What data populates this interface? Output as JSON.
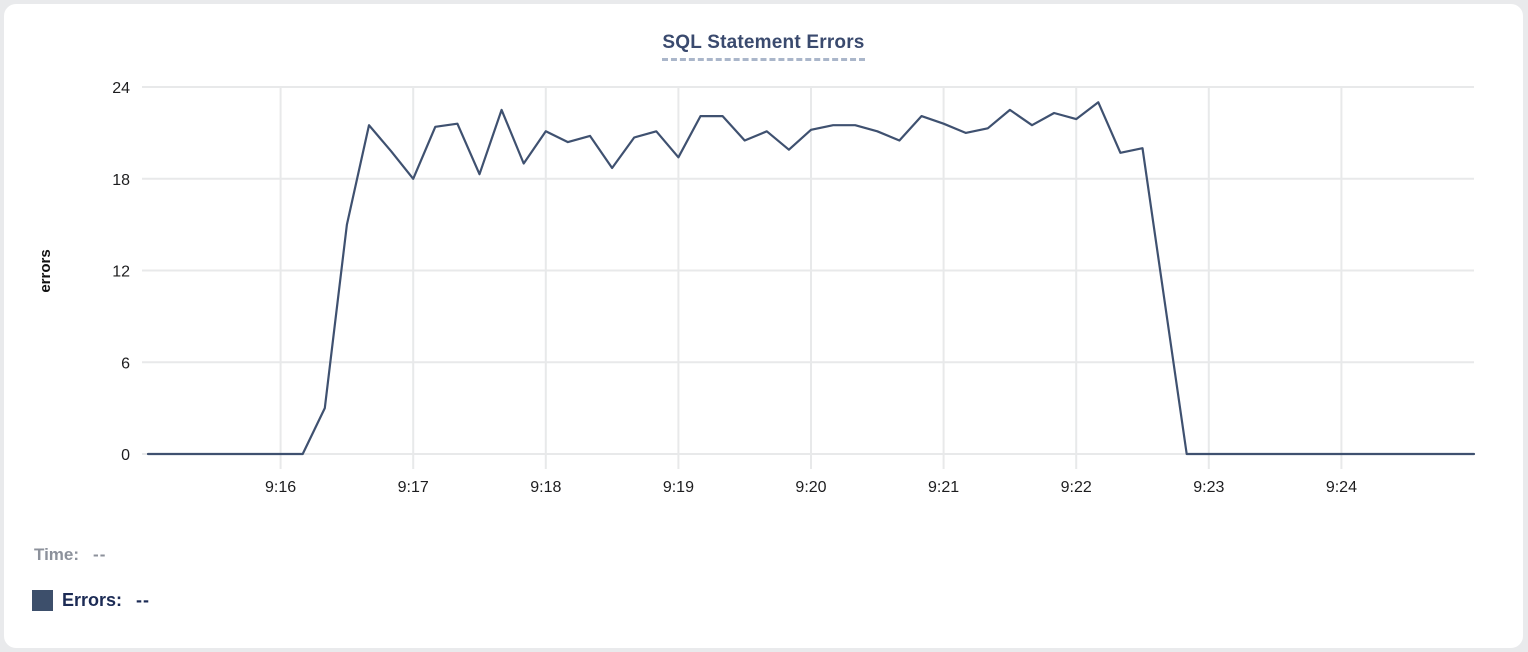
{
  "chart_data": {
    "type": "line",
    "title": "SQL Statement Errors",
    "xlabel": "",
    "ylabel": "errors",
    "ylim": [
      0,
      24
    ],
    "y_ticks": [
      0,
      6,
      12,
      18,
      24
    ],
    "x_tick_labels": [
      "9:16",
      "9:17",
      "9:18",
      "9:19",
      "9:20",
      "9:21",
      "9:22",
      "9:23",
      "9:24"
    ],
    "x_range_seconds": 600,
    "x_start": "9:15:00",
    "x_end": "9:25:00",
    "grid": true,
    "legend_position": "below-left",
    "grid_color": "#e8e9ea",
    "line_color": "#3f5170",
    "series": [
      {
        "name": "Errors",
        "times": [
          "9:15:00",
          "9:15:10",
          "9:15:20",
          "9:15:30",
          "9:15:40",
          "9:15:50",
          "9:16:00",
          "9:16:10",
          "9:16:20",
          "9:16:30",
          "9:16:40",
          "9:16:50",
          "9:17:00",
          "9:17:10",
          "9:17:20",
          "9:17:30",
          "9:17:40",
          "9:17:50",
          "9:18:00",
          "9:18:10",
          "9:18:20",
          "9:18:30",
          "9:18:40",
          "9:18:50",
          "9:19:00",
          "9:19:10",
          "9:19:20",
          "9:19:30",
          "9:19:40",
          "9:19:50",
          "9:20:00",
          "9:20:10",
          "9:20:20",
          "9:20:30",
          "9:20:40",
          "9:20:50",
          "9:21:00",
          "9:21:10",
          "9:21:20",
          "9:21:30",
          "9:21:40",
          "9:21:50",
          "9:22:00",
          "9:22:10",
          "9:22:20",
          "9:22:30",
          "9:22:40",
          "9:22:50",
          "9:23:00",
          "9:23:10",
          "9:23:20",
          "9:23:30",
          "9:23:40",
          "9:23:50",
          "9:24:00",
          "9:24:10",
          "9:24:20",
          "9:24:30",
          "9:24:40",
          "9:24:50",
          "9:25:00"
        ],
        "values": [
          0,
          0,
          0,
          0,
          0,
          0,
          0,
          0,
          3,
          15,
          21.5,
          19.8,
          18,
          21.4,
          21.6,
          18.3,
          22.5,
          19,
          21.1,
          20.4,
          20.8,
          18.7,
          20.7,
          21.1,
          19.4,
          22.1,
          22.1,
          20.5,
          21.1,
          19.9,
          21.2,
          21.5,
          21.5,
          21.1,
          20.5,
          22.1,
          21.6,
          21,
          21.3,
          22.5,
          21.5,
          22.3,
          21.9,
          23,
          19.7,
          20,
          10,
          0,
          0,
          0,
          0,
          0,
          0,
          0,
          0,
          0,
          0,
          0,
          0,
          0,
          0
        ]
      }
    ]
  },
  "tooltip": {
    "time_label": "Time:",
    "time_value": "--",
    "errors_label": "Errors:",
    "errors_value": "--",
    "swatch_color": "#3d4f6b"
  }
}
